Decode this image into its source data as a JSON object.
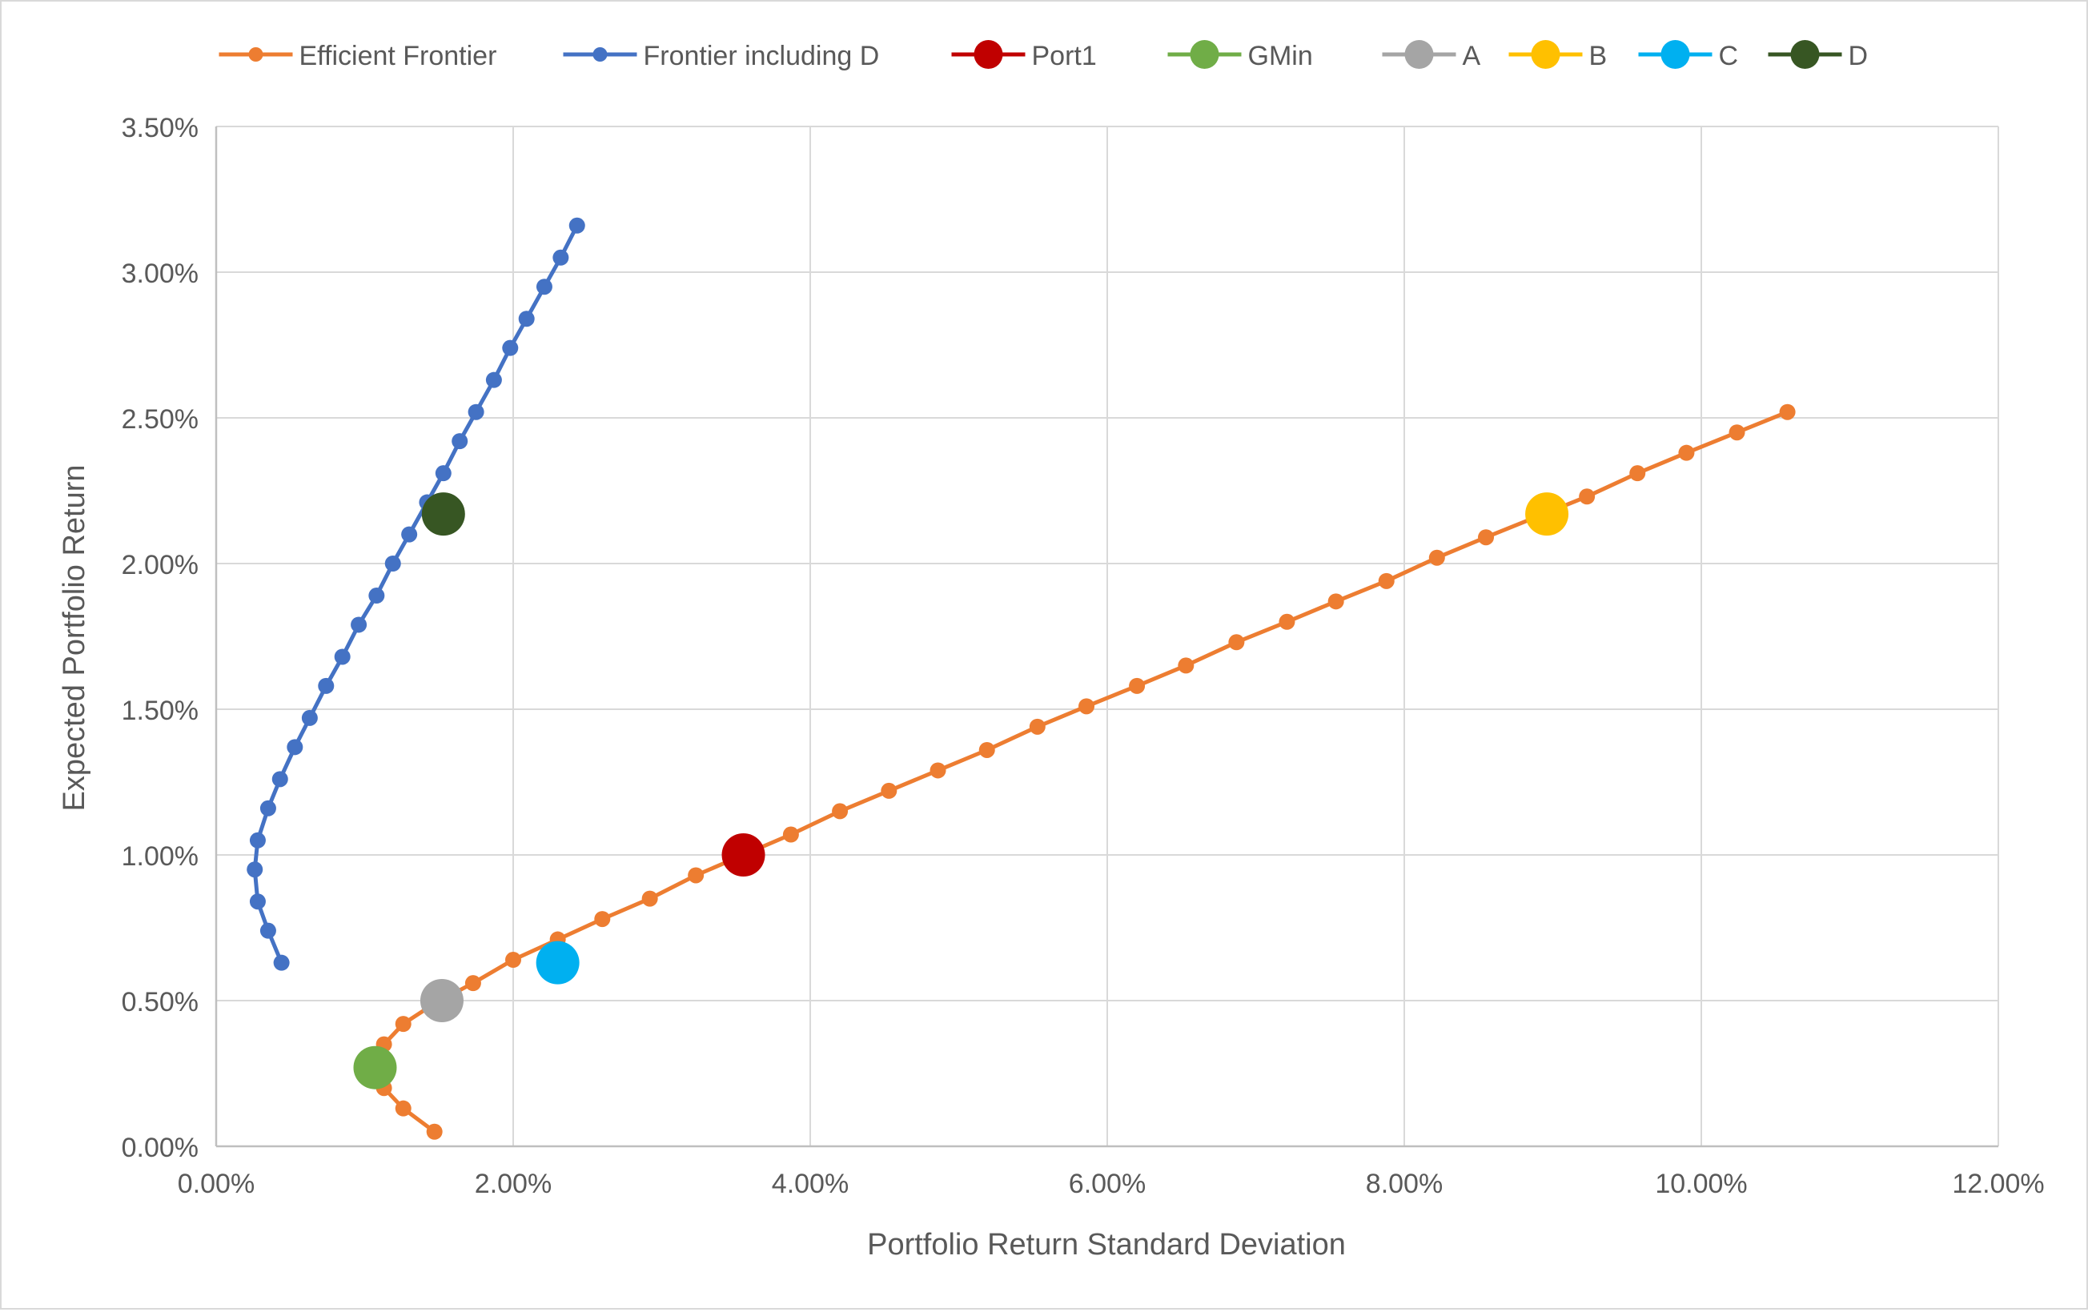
{
  "chart_data": {
    "type": "scatter",
    "title": "",
    "xlabel": "Portfolio Return Standard Deviation",
    "ylabel": "Expected Portfolio Return",
    "xlim": [
      0,
      0.12
    ],
    "ylim": [
      0,
      0.035
    ],
    "xticks": [
      0,
      0.02,
      0.04,
      0.06,
      0.08,
      0.1,
      0.12
    ],
    "xtick_labels": [
      "0.00%",
      "2.00%",
      "4.00%",
      "6.00%",
      "8.00%",
      "10.00%",
      "12.00%"
    ],
    "yticks": [
      0,
      0.005,
      0.01,
      0.015,
      0.02,
      0.025,
      0.03,
      0.035
    ],
    "ytick_labels": [
      "0.00%",
      "0.50%",
      "1.00%",
      "1.50%",
      "2.00%",
      "2.50%",
      "3.00%",
      "3.50%"
    ],
    "grid": true,
    "legend_position": "top",
    "series": [
      {
        "name": "Efficient Frontier",
        "color": "#ED7D31",
        "marker": "small",
        "line": true,
        "points": [
          [
            0.0147,
            0.0005
          ],
          [
            0.0126,
            0.0013
          ],
          [
            0.0113,
            0.002
          ],
          [
            0.0107,
            0.0027
          ],
          [
            0.0113,
            0.0035
          ],
          [
            0.0126,
            0.0042
          ],
          [
            0.0147,
            0.0049
          ],
          [
            0.0173,
            0.0056
          ],
          [
            0.02,
            0.0064
          ],
          [
            0.023,
            0.0071
          ],
          [
            0.026,
            0.0078
          ],
          [
            0.0292,
            0.0085
          ],
          [
            0.0323,
            0.0093
          ],
          [
            0.0355,
            0.01
          ],
          [
            0.0387,
            0.0107
          ],
          [
            0.042,
            0.0115
          ],
          [
            0.0453,
            0.0122
          ],
          [
            0.0486,
            0.0129
          ],
          [
            0.0519,
            0.0136
          ],
          [
            0.0553,
            0.0144
          ],
          [
            0.0586,
            0.0151
          ],
          [
            0.062,
            0.0158
          ],
          [
            0.0653,
            0.0165
          ],
          [
            0.0687,
            0.0173
          ],
          [
            0.0721,
            0.018
          ],
          [
            0.0754,
            0.0187
          ],
          [
            0.0788,
            0.0194
          ],
          [
            0.0822,
            0.0202
          ],
          [
            0.0855,
            0.0209
          ],
          [
            0.0889,
            0.0216
          ],
          [
            0.0923,
            0.0223
          ],
          [
            0.0957,
            0.0231
          ],
          [
            0.099,
            0.0238
          ],
          [
            0.1024,
            0.0245
          ],
          [
            0.1058,
            0.0252
          ]
        ]
      },
      {
        "name": "Frontier including D",
        "color": "#4472C4",
        "marker": "small",
        "line": true,
        "points": [
          [
            0.0044,
            0.0063
          ],
          [
            0.0035,
            0.0074
          ],
          [
            0.0028,
            0.0084
          ],
          [
            0.0026,
            0.0095
          ],
          [
            0.0028,
            0.0105
          ],
          [
            0.0035,
            0.0116
          ],
          [
            0.0043,
            0.0126
          ],
          [
            0.0053,
            0.0137
          ],
          [
            0.0063,
            0.0147
          ],
          [
            0.0074,
            0.0158
          ],
          [
            0.0085,
            0.0168
          ],
          [
            0.0096,
            0.0179
          ],
          [
            0.0108,
            0.0189
          ],
          [
            0.0119,
            0.02
          ],
          [
            0.013,
            0.021
          ],
          [
            0.0142,
            0.0221
          ],
          [
            0.0153,
            0.0231
          ],
          [
            0.0164,
            0.0242
          ],
          [
            0.0175,
            0.0252
          ],
          [
            0.0187,
            0.0263
          ],
          [
            0.0198,
            0.0274
          ],
          [
            0.0209,
            0.0284
          ],
          [
            0.0221,
            0.0295
          ],
          [
            0.0232,
            0.0305
          ],
          [
            0.0243,
            0.0316
          ]
        ]
      },
      {
        "name": "Port1",
        "color": "#C00000",
        "marker": "large",
        "line": false,
        "points": [
          [
            0.0355,
            0.01
          ]
        ]
      },
      {
        "name": "GMin",
        "color": "#70AD47",
        "marker": "large",
        "line": false,
        "points": [
          [
            0.0107,
            0.0027
          ]
        ]
      },
      {
        "name": "A",
        "color": "#A5A5A5",
        "marker": "large",
        "line": false,
        "points": [
          [
            0.0152,
            0.005
          ]
        ]
      },
      {
        "name": "B",
        "color": "#FFC000",
        "marker": "large",
        "line": false,
        "points": [
          [
            0.0896,
            0.0217
          ]
        ]
      },
      {
        "name": "C",
        "color": "#00B0F0",
        "marker": "large",
        "line": false,
        "points": [
          [
            0.023,
            0.0063
          ]
        ]
      },
      {
        "name": "D",
        "color": "#375623",
        "marker": "large",
        "line": false,
        "points": [
          [
            0.0153,
            0.0217
          ]
        ]
      }
    ]
  }
}
